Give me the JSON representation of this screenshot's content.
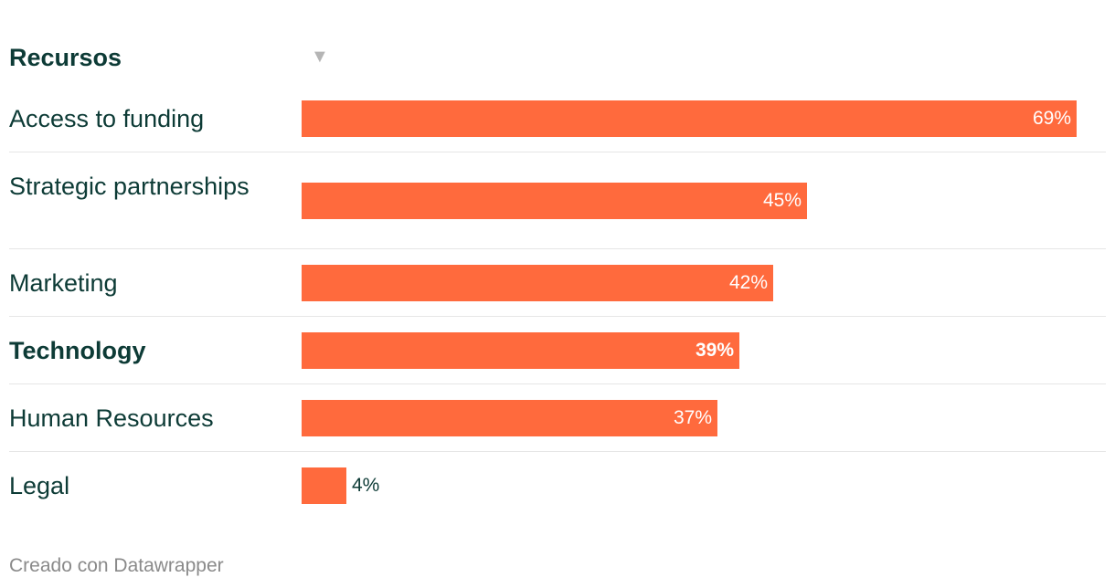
{
  "header": {
    "column_label": "Recursos",
    "sort_icon": "sort-down-icon"
  },
  "chart_data": {
    "type": "bar",
    "categories": [
      "Access to funding",
      "Strategic partnerships",
      "Marketing",
      "Technology",
      "Human Resources",
      "Legal"
    ],
    "values": [
      69,
      45,
      42,
      39,
      37,
      4
    ],
    "value_labels": [
      "69%",
      "45%",
      "42%",
      "39%",
      "37%",
      "4%"
    ],
    "highlighted": "Technology",
    "xlim": [
      0,
      70
    ],
    "color": "#ff6a3d"
  },
  "footer": {
    "credit": "Creado con Datawrapper"
  }
}
